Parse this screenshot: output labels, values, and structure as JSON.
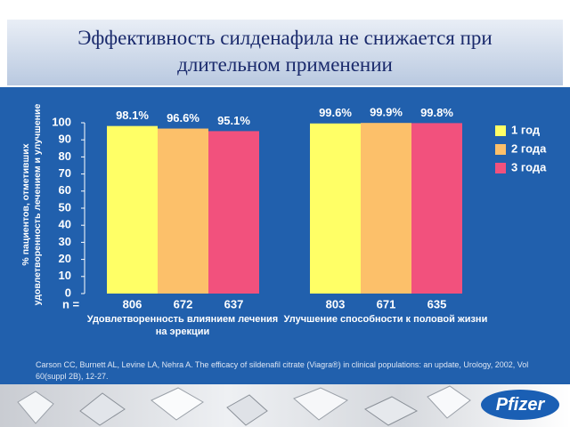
{
  "title": "Эффективность силденафила не снижается при длительном применении",
  "chart_data": {
    "type": "bar",
    "ylabel": "% пациентов, отметивших удовлетворенность лечением и улучшение",
    "categories": [
      "Удовлетворенность влиянием лечения на эрекции",
      "Улучшение способности к половой жизни"
    ],
    "n_label": "n =",
    "series": [
      {
        "name": "1 год",
        "color": "#ffff66",
        "values": [
          98.1,
          99.6
        ],
        "value_labels": [
          "98.1%",
          "99.6%"
        ],
        "n": [
          806,
          803
        ]
      },
      {
        "name": "2 года",
        "color": "#fcc06a",
        "values": [
          96.6,
          99.9
        ],
        "value_labels": [
          "96.6%",
          "99.9%"
        ],
        "n": [
          672,
          671
        ]
      },
      {
        "name": "3 года",
        "color": "#f2517d",
        "values": [
          95.1,
          99.8
        ],
        "value_labels": [
          "95.1%",
          "99.8%"
        ],
        "n": [
          637,
          635
        ]
      }
    ],
    "ylim": [
      0,
      100
    ],
    "yticks": [
      0,
      10,
      20,
      30,
      40,
      50,
      60,
      70,
      80,
      90,
      100
    ],
    "legend": "right"
  },
  "citation": "Carson CC, Burnett AL, Levine LA, Nehra A. The efficacy of sildenafil citrate (Viagra®) in clinical populations: an update, Urology, 2002, Vol 60(suppl 2B), 12-27.",
  "logo": "Pfizer"
}
